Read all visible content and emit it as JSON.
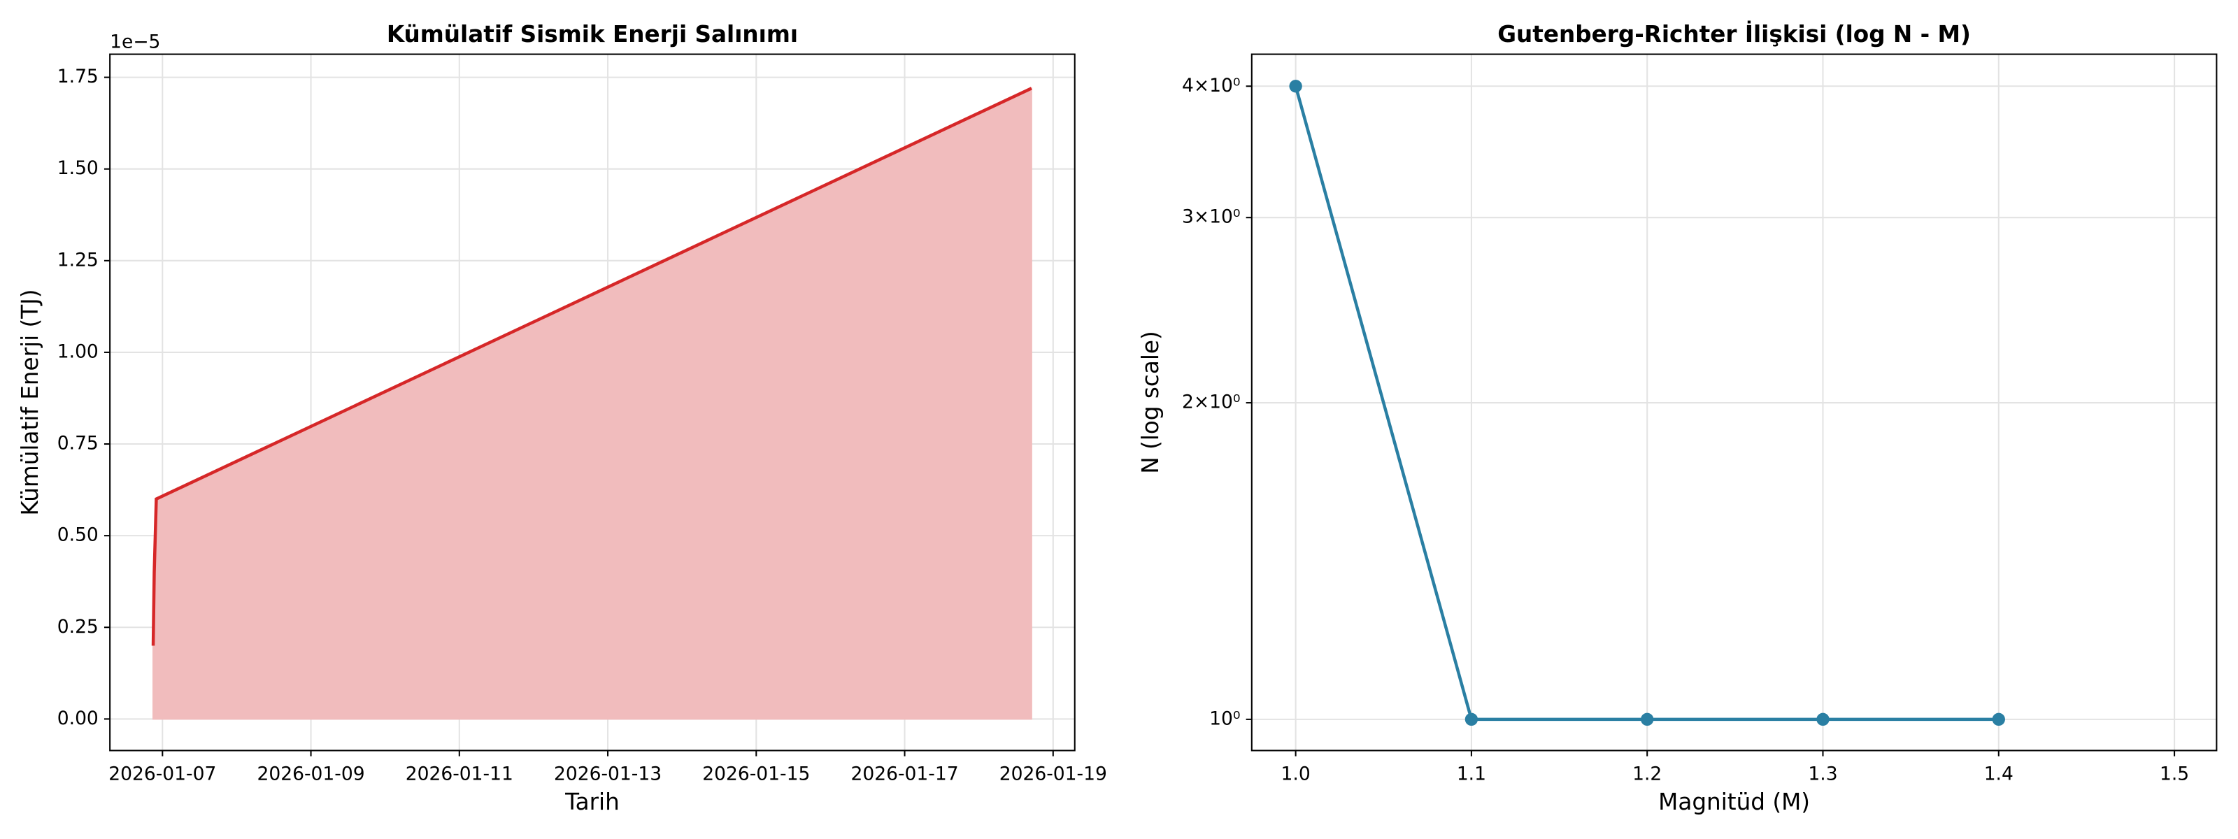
{
  "chart_data": [
    {
      "type": "area",
      "title": "Kümülatif Sismik Enerji Salınımı",
      "x_label": "Tarih",
      "y_label": "Kümülatif Enerji (TJ)",
      "y_offset_label": "1e−5",
      "x": [
        "2026-01-06T21:00",
        "2026-01-06T21:20",
        "2026-01-06T22:00",
        "2026-01-18T17:00"
      ],
      "values": [
        0.2,
        0.4,
        0.6,
        1.72
      ],
      "color": "#d62728",
      "fill_color": "#f1bcbd",
      "xlim": [
        "2026-01-06T07:00",
        "2026-01-19T07:00"
      ],
      "xticks": [
        "2026-01-07",
        "2026-01-09",
        "2026-01-11",
        "2026-01-13",
        "2026-01-15",
        "2026-01-17",
        "2026-01-19"
      ],
      "ylim": [
        -0.086,
        1.813
      ],
      "yticks": [
        {
          "value": 0,
          "label": "0.00"
        },
        0.25,
        {
          "value": 0.5,
          "label": "0.50"
        },
        0.75,
        {
          "value": 1,
          "label": "1.00"
        },
        1.25,
        {
          "value": 1.5,
          "label": "1.50"
        },
        1.75
      ],
      "grid": true
    },
    {
      "type": "line",
      "title": "Gutenberg-Richter İlişkisi (log N - M)",
      "x_label": "Magnitüd (M)",
      "y_label": "N (log scale)",
      "x": [
        1.0,
        1.1,
        1.2,
        1.3,
        1.4
      ],
      "values": [
        4,
        1,
        1,
        1,
        1
      ],
      "color": "#2a7fa3",
      "xlim": [
        0.975,
        1.524
      ],
      "xticks": [
        {
          "value": 1,
          "label": "1.0"
        },
        1.1,
        1.2,
        1.3,
        1.4,
        1.5
      ],
      "ylim": [
        0.934,
        4.29
      ],
      "log_y": true,
      "yticks": [
        {
          "value": 1,
          "label": "10⁰"
        },
        {
          "value": 2,
          "label": "2×10⁰"
        },
        {
          "value": 3,
          "label": "3×10⁰"
        },
        {
          "value": 4,
          "label": "4×10⁰"
        }
      ],
      "grid": true
    }
  ]
}
